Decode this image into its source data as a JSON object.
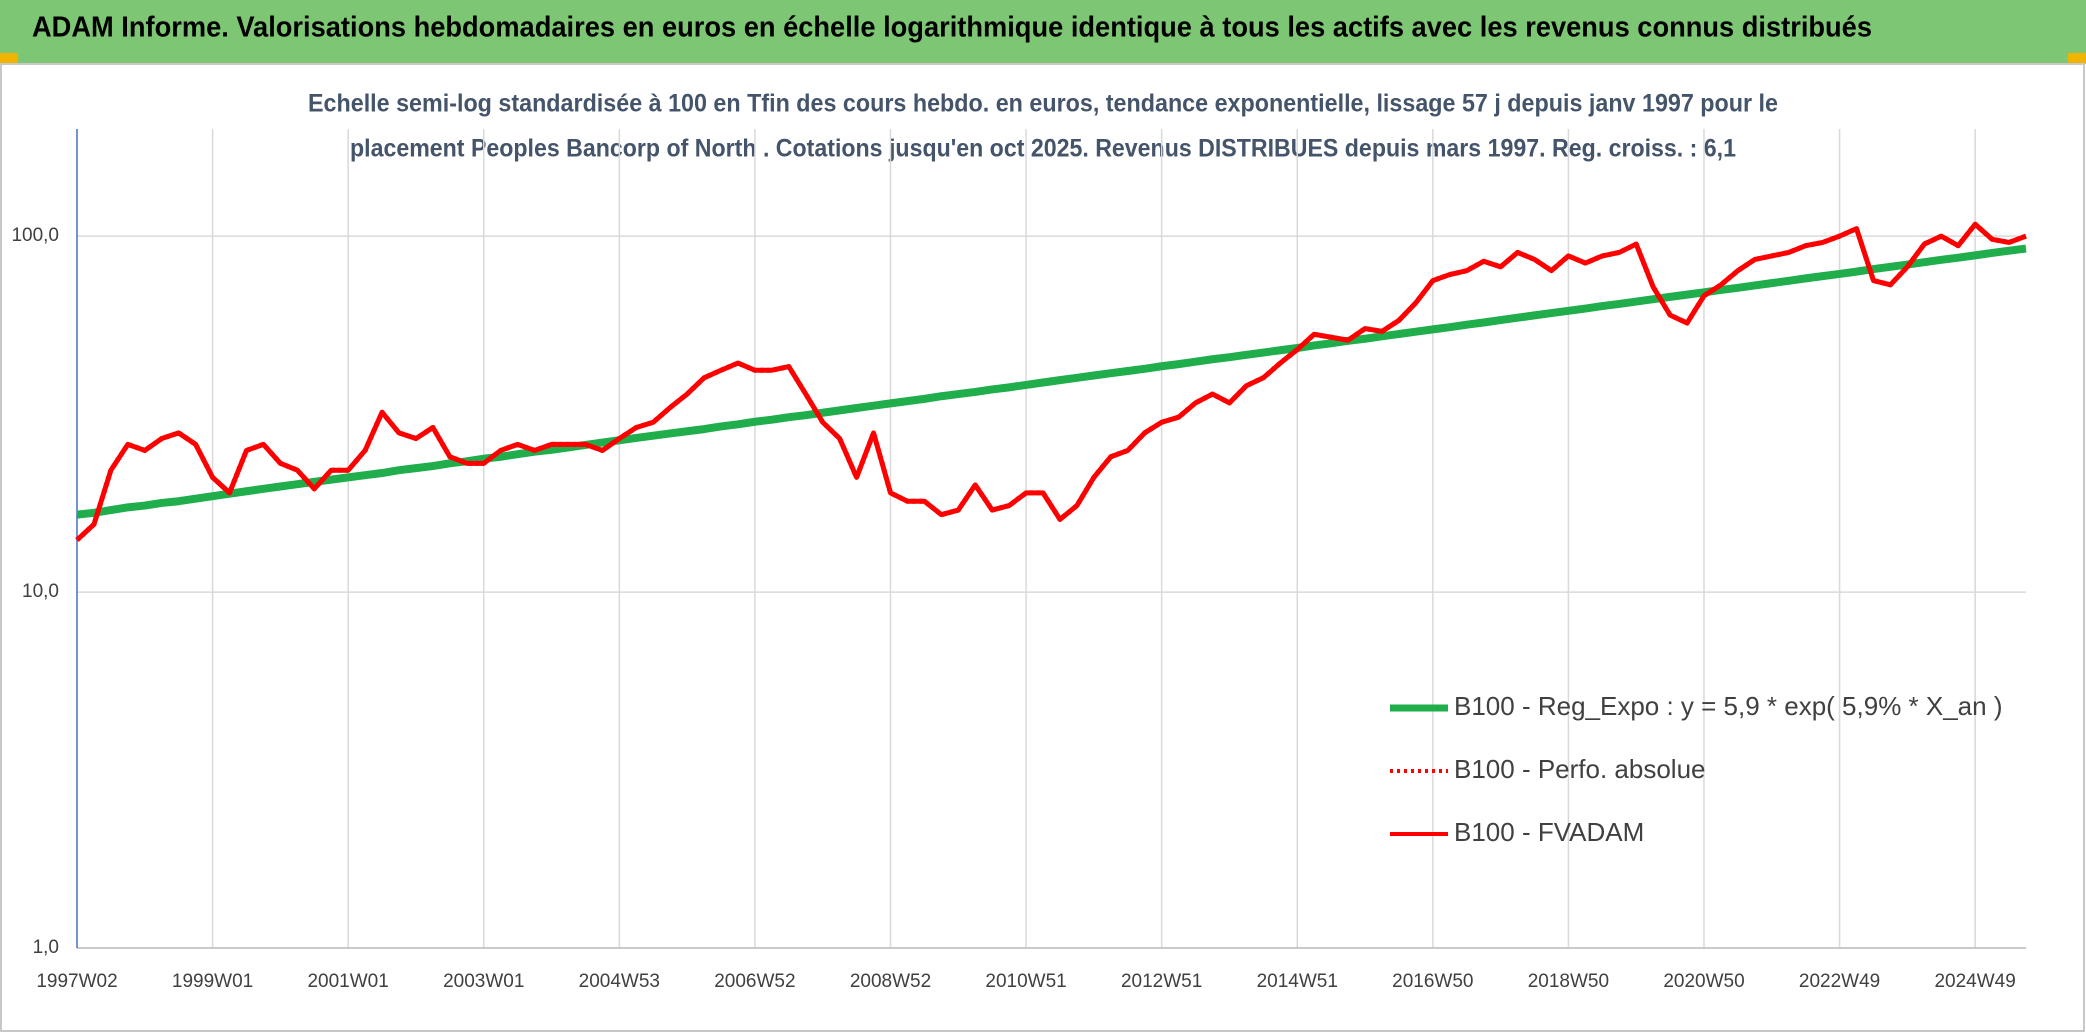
{
  "chart_data": {
    "type": "line",
    "title": "ADAM Informe. Valorisations hebdomadaires en euros en échelle logarithmique identique à tous les actifs avec les revenus connus distribués",
    "subtitle": [
      "Echelle semi-log standardisée à 100 en Tfin des cours hebdo. en euros, tendance exponentielle, lissage 57 j depuis janv 1997 pour le",
      "placement Peoples Bancorp of North . Cotations jusqu'en oct 2025. Revenus DISTRIBUES depuis mars 1997. Reg. croiss. : 6,1"
    ],
    "y_log": true,
    "ylim": [
      1,
      200
    ],
    "yticks": [
      {
        "value": 1,
        "label": "1,0"
      },
      {
        "value": 10,
        "label": "10,0"
      },
      {
        "value": 100,
        "label": "100,0"
      }
    ],
    "grid": true,
    "legend_position": "lower right",
    "categories": [
      "1997W02",
      null,
      null,
      null,
      null,
      null,
      null,
      null,
      "1999W01",
      null,
      null,
      null,
      null,
      null,
      null,
      null,
      "2001W01",
      null,
      null,
      null,
      null,
      null,
      null,
      null,
      "2003W01",
      null,
      null,
      null,
      null,
      null,
      null,
      null,
      "2004W53",
      null,
      null,
      null,
      null,
      null,
      null,
      null,
      "2006W52",
      null,
      null,
      null,
      null,
      null,
      null,
      null,
      "2008W52",
      null,
      null,
      null,
      null,
      null,
      null,
      null,
      "2010W51",
      null,
      null,
      null,
      null,
      null,
      null,
      null,
      "2012W51",
      null,
      null,
      null,
      null,
      null,
      null,
      null,
      "2014W51",
      null,
      null,
      null,
      null,
      null,
      null,
      null,
      "2016W50",
      null,
      null,
      null,
      null,
      null,
      null,
      null,
      "2018W50",
      null,
      null,
      null,
      null,
      null,
      null,
      null,
      "2020W50",
      null,
      null,
      null,
      null,
      null,
      null,
      null,
      "2022W49",
      null,
      null,
      null,
      null,
      null,
      null,
      null,
      "2024W49",
      null,
      null,
      null
    ],
    "series": [
      {
        "name": "B100 - Reg_Expo : y = 5,9 * exp( 5,9% *  X_an )",
        "color": "#1fae4b",
        "style": "solid",
        "values": [
          16.5,
          16.7,
          17.0,
          17.3,
          17.5,
          17.8,
          18.0,
          18.3,
          18.6,
          18.9,
          19.2,
          19.5,
          19.8,
          20.1,
          20.4,
          20.7,
          21.0,
          21.3,
          21.6,
          22.0,
          22.3,
          22.6,
          23.0,
          23.3,
          23.7,
          24.0,
          24.4,
          24.8,
          25.1,
          25.5,
          25.9,
          26.3,
          26.7,
          27.1,
          27.5,
          27.9,
          28.3,
          28.7,
          29.2,
          29.6,
          30.1,
          30.5,
          31.0,
          31.4,
          31.9,
          32.4,
          32.9,
          33.4,
          33.9,
          34.4,
          34.9,
          35.5,
          36.0,
          36.5,
          37.1,
          37.6,
          38.2,
          38.8,
          39.4,
          40.0,
          40.6,
          41.2,
          41.8,
          42.4,
          43.1,
          43.7,
          44.4,
          45.1,
          45.7,
          46.4,
          47.1,
          47.8,
          48.5,
          49.3,
          50.0,
          50.8,
          51.5,
          52.3,
          53.1,
          53.9,
          54.7,
          55.5,
          56.4,
          57.2,
          58.1,
          59.0,
          59.9,
          60.8,
          61.7,
          62.6,
          63.6,
          64.5,
          65.5,
          66.5,
          67.5,
          68.5,
          69.5,
          70.6,
          71.6,
          72.7,
          73.8,
          74.9,
          76.1,
          77.2,
          78.3,
          79.5,
          80.8,
          82.0,
          83.2,
          84.5,
          85.8,
          87.0,
          88.3,
          89.7,
          91.0,
          92.3
        ]
      },
      {
        "name": "B100 - Perfo. absolue",
        "color": "#ff0000",
        "style": "dotted",
        "values": [
          14,
          15.5,
          22,
          26,
          25,
          27,
          28,
          26,
          21,
          19,
          25,
          26,
          23,
          22,
          19.5,
          22,
          22,
          25,
          32,
          28,
          27,
          29,
          24,
          23,
          23,
          25,
          26,
          25,
          26,
          26,
          26,
          25,
          27,
          29,
          30,
          33,
          36,
          40,
          42,
          44,
          42,
          42,
          43,
          36,
          30,
          27,
          21,
          28,
          19,
          18,
          18,
          16.5,
          17,
          20,
          17,
          17.5,
          19,
          19,
          16,
          17.5,
          21,
          24,
          25,
          28,
          30,
          31,
          34,
          36,
          34,
          38,
          40,
          44,
          48,
          53,
          52,
          51,
          55,
          54,
          58,
          65,
          75,
          78,
          80,
          85,
          82,
          90,
          86,
          80,
          88,
          84,
          88,
          90,
          95,
          72,
          60,
          57,
          68,
          73,
          80,
          86,
          88,
          90,
          94,
          96,
          100,
          105,
          75,
          73,
          82,
          95,
          100,
          94,
          108,
          98,
          96,
          100
        ]
      },
      {
        "name": "B100 - FVADAM",
        "color": "#ff0000",
        "style": "solid",
        "values": [
          14,
          15.5,
          22,
          26,
          25,
          27,
          28,
          26,
          21,
          19,
          25,
          26,
          23,
          22,
          19.5,
          22,
          22,
          25,
          32,
          28,
          27,
          29,
          24,
          23,
          23,
          25,
          26,
          25,
          26,
          26,
          26,
          25,
          27,
          29,
          30,
          33,
          36,
          40,
          42,
          44,
          42,
          42,
          43,
          36,
          30,
          27,
          21,
          28,
          19,
          18,
          18,
          16.5,
          17,
          20,
          17,
          17.5,
          19,
          19,
          16,
          17.5,
          21,
          24,
          25,
          28,
          30,
          31,
          34,
          36,
          34,
          38,
          40,
          44,
          48,
          53,
          52,
          51,
          55,
          54,
          58,
          65,
          75,
          78,
          80,
          85,
          82,
          90,
          86,
          80,
          88,
          84,
          88,
          90,
          95,
          72,
          60,
          57,
          68,
          73,
          80,
          86,
          88,
          90,
          94,
          96,
          100,
          105,
          75,
          73,
          82,
          95,
          100,
          94,
          108,
          98,
          96,
          100
        ]
      }
    ]
  }
}
